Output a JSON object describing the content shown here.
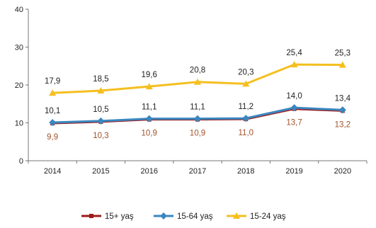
{
  "chart_data": {
    "type": "line",
    "title": "",
    "xlabel": "",
    "ylabel": "",
    "x": [
      "2014",
      "2015",
      "2016",
      "2017",
      "2018",
      "2019",
      "2020"
    ],
    "ylim": [
      0,
      40
    ],
    "yticks": [
      "0",
      "10",
      "20",
      "30",
      "40"
    ],
    "grid": false,
    "legend_position": "bottom",
    "series": [
      {
        "name": "15+ yaş",
        "values": [
          9.9,
          10.3,
          10.9,
          10.9,
          11.0,
          13.7,
          13.2
        ],
        "labels": [
          "9,9",
          "10,3",
          "10,9",
          "10,9",
          "11,0",
          "13,7",
          "13,2"
        ],
        "color": "#9b1c1c",
        "label_color": "#a0522d",
        "label_position": "below"
      },
      {
        "name": "15-64 yaş",
        "values": [
          10.1,
          10.5,
          11.1,
          11.1,
          11.2,
          14.0,
          13.4
        ],
        "labels": [
          "10,1",
          "10,5",
          "11,1",
          "11,1",
          "11,2",
          "14,0",
          "13,4"
        ],
        "color": "#3a87c0",
        "label_color": "#222222",
        "label_position": "above"
      },
      {
        "name": "15-24 yaş",
        "values": [
          17.9,
          18.5,
          19.6,
          20.8,
          20.3,
          25.4,
          25.3
        ],
        "labels": [
          "17,9",
          "18,5",
          "19,6",
          "20,8",
          "20,3",
          "25,4",
          "25,3"
        ],
        "color": "#f5bf1f",
        "label_color": "#222222",
        "label_position": "above"
      }
    ]
  }
}
